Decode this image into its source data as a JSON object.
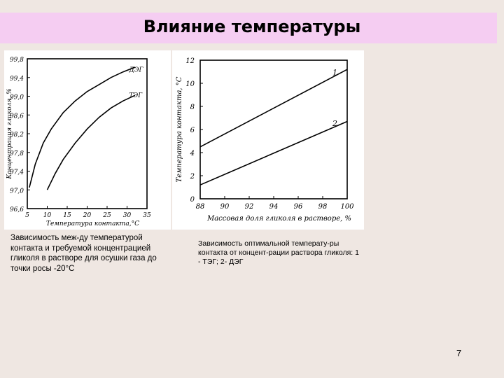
{
  "slide": {
    "title": "Влияние температуры",
    "page_number": "7"
  },
  "captions": {
    "left": "Зависимость меж-ду температурой контакта и требуемой концентрацией гликоля в растворе для осушки газа до точки росы -20°С",
    "right": "Зависимость оптимальной температу-ры контакта от концент-рации раствора гликоля: 1 - ТЭГ; 2- ДЭГ"
  },
  "chart_data": [
    {
      "type": "line",
      "title": "",
      "xlabel": "Температура контакта,°С",
      "ylabel": "Концентрация гликоля, %",
      "xlim": [
        5,
        35
      ],
      "ylim": [
        96.6,
        99.8
      ],
      "x_ticks": [
        "5",
        "10",
        "15",
        "20",
        "25",
        "30",
        "35"
      ],
      "y_ticks": [
        "96,6",
        "97,0",
        "97,4",
        "97,8",
        "98,2",
        "98,6",
        "99,0",
        "99,4",
        "99,8"
      ],
      "series": [
        {
          "name": "ДЭГ",
          "x": [
            5.5,
            7,
            9,
            11,
            14,
            17,
            20,
            23,
            26,
            29,
            32
          ],
          "y": [
            97.05,
            97.55,
            98.0,
            98.3,
            98.65,
            98.9,
            99.1,
            99.25,
            99.4,
            99.52,
            99.62
          ]
        },
        {
          "name": "ТЭГ",
          "x": [
            10,
            12,
            14,
            17,
            20,
            23,
            26,
            29,
            32
          ],
          "y": [
            97.0,
            97.35,
            97.65,
            98.0,
            98.3,
            98.55,
            98.75,
            98.9,
            99.02
          ]
        }
      ],
      "grid": false
    },
    {
      "type": "line",
      "title": "",
      "xlabel": "Массовая доля гликоля в растворе, %",
      "ylabel": "Температура контакта, °С",
      "xlim": [
        88,
        100
      ],
      "ylim": [
        0,
        12
      ],
      "x_ticks": [
        "88",
        "90",
        "92",
        "94",
        "96",
        "98",
        "100"
      ],
      "y_ticks": [
        "0",
        "2",
        "4",
        "6",
        "8",
        "10",
        "12"
      ],
      "series": [
        {
          "name": "1",
          "x": [
            88,
            100
          ],
          "y": [
            4.5,
            11.2
          ]
        },
        {
          "name": "2",
          "x": [
            88,
            100
          ],
          "y": [
            1.2,
            6.7
          ]
        }
      ],
      "grid": false
    }
  ]
}
